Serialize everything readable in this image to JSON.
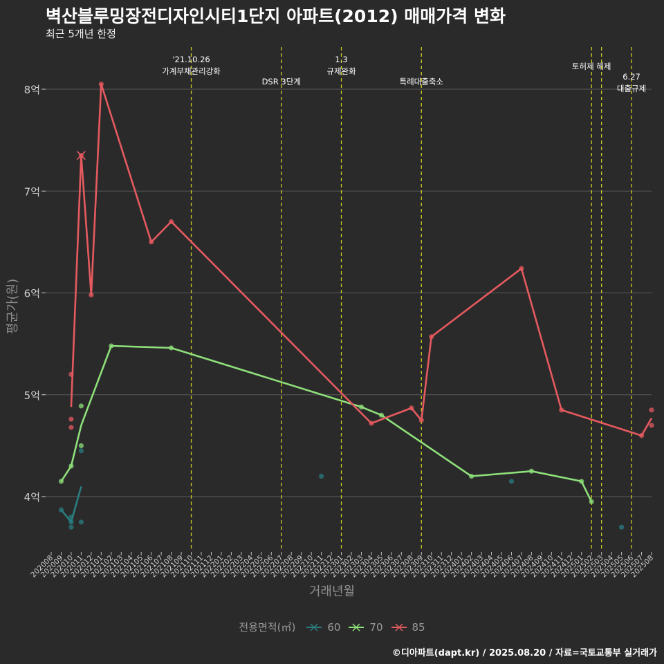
{
  "title": "벽산블루밍장전디자인시티1단지 아파트(2012) 매매가격 변화",
  "subtitle": "최근 5개년 한정",
  "caption": "©디아파트(dapt.kr) / 2025.08.20 / 자료=국토교통부 실거래가",
  "colors": {
    "background": "#2b2a2b",
    "grid": "#5a5a5a",
    "event_line": "#cccc22",
    "s60": "#2a7e80",
    "s70": "#8ee07a",
    "s85": "#e55a5f"
  },
  "chart_data": {
    "type": "line",
    "xlabel": "거래년월",
    "ylabel": "평균가(원)",
    "ylim": [
      3.5,
      8.5
    ],
    "y_ticks": [
      {
        "value": 4,
        "label": "4억"
      },
      {
        "value": 5,
        "label": "5억"
      },
      {
        "value": 6,
        "label": "6억"
      },
      {
        "value": 7,
        "label": "7억"
      },
      {
        "value": 8,
        "label": "8억"
      }
    ],
    "x_ticks": [
      "202008",
      "202009",
      "202010",
      "202011",
      "202012",
      "202101",
      "202102",
      "202103",
      "202104",
      "202105",
      "202106",
      "202107",
      "202108",
      "202109",
      "202110",
      "202111",
      "202112",
      "202201",
      "202202",
      "202203",
      "202204",
      "202205",
      "202206",
      "202207",
      "202208",
      "202209",
      "202210",
      "202211",
      "202212",
      "202301",
      "202302",
      "202303",
      "202304",
      "202305",
      "202306",
      "202307",
      "202308",
      "202309",
      "202310",
      "202311",
      "202312",
      "202401",
      "202402",
      "202403",
      "202404",
      "202405",
      "202406",
      "202407",
      "202408",
      "202409",
      "202410",
      "202411",
      "202412",
      "202501",
      "202502",
      "202503",
      "202504",
      "202505",
      "202506",
      "202507",
      "202508"
    ],
    "legend_title": "전용면적(㎡)",
    "events": [
      {
        "x": 202110,
        "label": "'21.10.26\n가계부채관리강화",
        "row": 0
      },
      {
        "x": 202207,
        "label": "DSR 3단계",
        "row": 2
      },
      {
        "x": 202301,
        "label": "1.3\n규제완화",
        "row": 0
      },
      {
        "x": 202309,
        "label": "특례대출축소",
        "row": 2
      },
      {
        "x": 202502,
        "label": "토허제 해제",
        "row": 1
      },
      {
        "x": 202503,
        "label": "",
        "row": 1
      },
      {
        "x": 202506,
        "label": "6.27\n대출규제",
        "row": 3
      }
    ],
    "series": [
      {
        "name": "60",
        "color": "#2a7e80",
        "line": [
          [
            202009,
            3.87
          ],
          [
            202010,
            3.75
          ],
          [
            202011,
            4.1
          ]
        ],
        "points": [
          [
            202009,
            3.87
          ],
          [
            202010,
            3.8
          ],
          [
            202010,
            3.7
          ],
          [
            202010,
            3.75
          ],
          [
            202011,
            4.45
          ],
          [
            202011,
            3.75
          ],
          [
            202211,
            4.2
          ],
          [
            202406,
            4.15
          ],
          [
            202505,
            3.7
          ]
        ]
      },
      {
        "name": "70",
        "color": "#8ee07a",
        "line": [
          [
            202009,
            4.15
          ],
          [
            202010,
            4.3
          ],
          [
            202011,
            4.7
          ],
          [
            202102,
            5.48
          ],
          [
            202108,
            5.46
          ],
          [
            202303,
            4.88
          ],
          [
            202305,
            4.8
          ],
          [
            202402,
            4.2
          ],
          [
            202408,
            4.25
          ],
          [
            202501,
            4.15
          ],
          [
            202502,
            3.95
          ]
        ],
        "points": [
          [
            202009,
            4.15
          ],
          [
            202010,
            4.3
          ],
          [
            202011,
            4.89
          ],
          [
            202011,
            4.5
          ],
          [
            202102,
            5.48
          ],
          [
            202108,
            5.46
          ],
          [
            202303,
            4.88
          ],
          [
            202305,
            4.8
          ],
          [
            202402,
            4.2
          ],
          [
            202408,
            4.25
          ],
          [
            202501,
            4.15
          ],
          [
            202502,
            3.95
          ]
        ]
      },
      {
        "name": "85",
        "color": "#e55a5f",
        "line": [
          [
            202010,
            4.88
          ],
          [
            202011,
            7.35
          ],
          [
            202012,
            5.98
          ],
          [
            202101,
            8.05
          ],
          [
            202106,
            6.5
          ],
          [
            202108,
            6.7
          ],
          [
            202304,
            4.72
          ],
          [
            202308,
            4.87
          ],
          [
            202309,
            4.75
          ],
          [
            202310,
            5.57
          ],
          [
            202407,
            6.24
          ],
          [
            202411,
            4.85
          ],
          [
            202507,
            4.6
          ],
          [
            202508,
            4.77
          ]
        ],
        "points": [
          [
            202010,
            5.2
          ],
          [
            202010,
            4.76
          ],
          [
            202010,
            4.68
          ],
          [
            202011,
            7.35
          ],
          [
            202012,
            5.98
          ],
          [
            202101,
            8.05
          ],
          [
            202106,
            6.5
          ],
          [
            202108,
            6.7
          ],
          [
            202304,
            4.72
          ],
          [
            202308,
            4.87
          ],
          [
            202309,
            4.75
          ],
          [
            202310,
            5.57
          ],
          [
            202407,
            6.24
          ],
          [
            202411,
            4.85
          ],
          [
            202507,
            4.6
          ],
          [
            202508,
            4.85
          ],
          [
            202508,
            4.7
          ]
        ]
      }
    ]
  }
}
